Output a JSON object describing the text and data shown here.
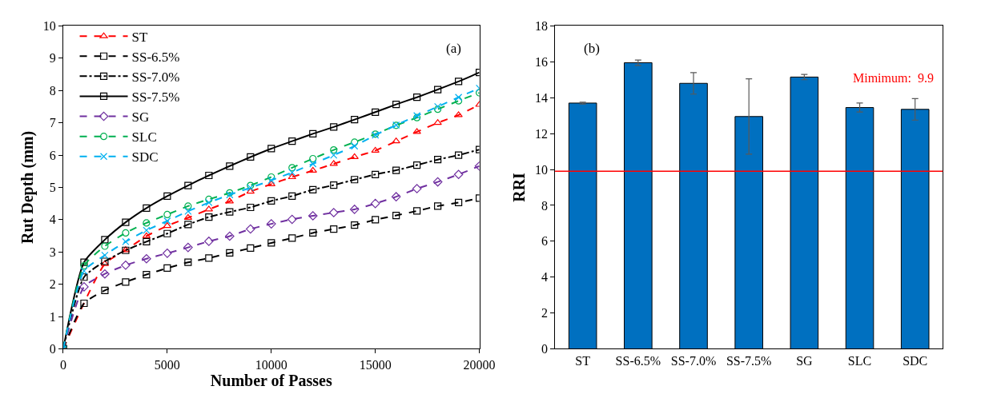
{
  "chart_data": [
    {
      "type": "line",
      "xlabel": "Number of Passes",
      "ylabel": "Rut Depth (mm)",
      "annotations": [
        "(a)"
      ],
      "x": [
        0,
        1000,
        2000,
        3000,
        4000,
        5000,
        6000,
        7000,
        8000,
        9000,
        10000,
        11000,
        12000,
        13000,
        14000,
        15000,
        16000,
        17000,
        18000,
        19000,
        20000
      ],
      "series": [
        {
          "name": "ST",
          "color": "#ff0000",
          "marker": "triangle",
          "line_style": "dashed",
          "values": [
            0,
            null,
            2.63,
            3.06,
            3.49,
            3.81,
            4.06,
            4.32,
            4.57,
            4.87,
            5.1,
            5.32,
            5.52,
            5.73,
            5.94,
            6.14,
            6.43,
            6.72,
            7.0,
            7.24,
            7.56
          ]
        },
        {
          "name": "SS-6.5%",
          "color": "#000000",
          "marker": "square",
          "line_style": "dashed",
          "values": [
            0,
            1.41,
            1.81,
            2.07,
            2.3,
            2.5,
            2.68,
            2.81,
            2.97,
            3.12,
            3.28,
            3.43,
            3.59,
            3.71,
            3.83,
            4.0,
            4.13,
            4.27,
            4.42,
            4.53,
            4.67
          ]
        },
        {
          "name": "SS-7.0%",
          "color": "#000000",
          "marker": "square",
          "line_style": "dashdot",
          "values": [
            0,
            2.22,
            2.71,
            3.05,
            3.32,
            3.57,
            3.85,
            4.08,
            4.24,
            4.38,
            4.58,
            4.73,
            4.93,
            5.07,
            5.24,
            5.4,
            5.53,
            5.69,
            5.86,
            6.0,
            6.17
          ]
        },
        {
          "name": "SS-7.5%",
          "color": "#000000",
          "marker": "square",
          "line_style": "solid",
          "values": [
            0,
            2.68,
            3.38,
            3.92,
            4.36,
            4.73,
            5.06,
            5.37,
            5.66,
            5.94,
            6.2,
            6.43,
            6.66,
            6.87,
            7.1,
            7.33,
            7.57,
            7.79,
            8.03,
            8.28,
            8.56
          ]
        },
        {
          "name": "SG",
          "color": "#7030a0",
          "marker": "diamond",
          "line_style": "dashed",
          "values": [
            0,
            1.92,
            2.32,
            2.59,
            2.79,
            2.96,
            3.14,
            3.33,
            3.49,
            3.71,
            3.87,
            4.01,
            4.12,
            4.22,
            4.32,
            4.5,
            4.71,
            4.96,
            5.17,
            5.4,
            5.66
          ]
        },
        {
          "name": "SLC",
          "color": "#00b050",
          "marker": "circle",
          "line_style": "dashed",
          "values": [
            0,
            2.57,
            3.18,
            3.59,
            3.9,
            4.16,
            4.42,
            4.63,
            4.83,
            5.06,
            5.32,
            5.61,
            5.89,
            6.16,
            6.4,
            6.65,
            6.92,
            7.16,
            7.42,
            7.68,
            7.93
          ]
        },
        {
          "name": "SDC",
          "color": "#00b0f0",
          "marker": "cross",
          "line_style": "dashed",
          "values": [
            0,
            2.41,
            2.9,
            3.32,
            3.67,
            3.96,
            4.26,
            4.53,
            4.77,
            4.99,
            5.22,
            5.46,
            5.73,
            6.0,
            6.28,
            6.62,
            6.93,
            7.22,
            7.5,
            7.79,
            8.07
          ]
        }
      ],
      "xlim": [
        0,
        20000
      ],
      "xticks": [
        0,
        5000,
        10000,
        15000,
        20000
      ],
      "ylim": [
        0,
        10
      ],
      "yticks": [
        0,
        1,
        2,
        3,
        4,
        5,
        6,
        7,
        8,
        9,
        10
      ],
      "legend": "top left"
    },
    {
      "type": "bar",
      "ylabel": "RRI",
      "annotations": [
        "(b)"
      ],
      "categories": [
        "ST",
        "SS-6.5%",
        "SS-7.0%",
        "SS-7.5%",
        "SG",
        "SLC",
        "SDC"
      ],
      "values": [
        13.7,
        15.95,
        14.8,
        12.95,
        15.15,
        13.45,
        13.35
      ],
      "color": "#0070c0",
      "errors": [
        0.05,
        0.15,
        0.6,
        2.1,
        0.15,
        0.25,
        0.6
      ],
      "ref_lines": [
        {
          "axis": "y",
          "value": 9.9,
          "label": "Mimimum:  9.9",
          "color": "#ff0000"
        }
      ],
      "ylim": [
        0,
        18
      ],
      "yticks": [
        0,
        2,
        4,
        6,
        8,
        10,
        12,
        14,
        16,
        18
      ],
      "legend": false
    }
  ]
}
